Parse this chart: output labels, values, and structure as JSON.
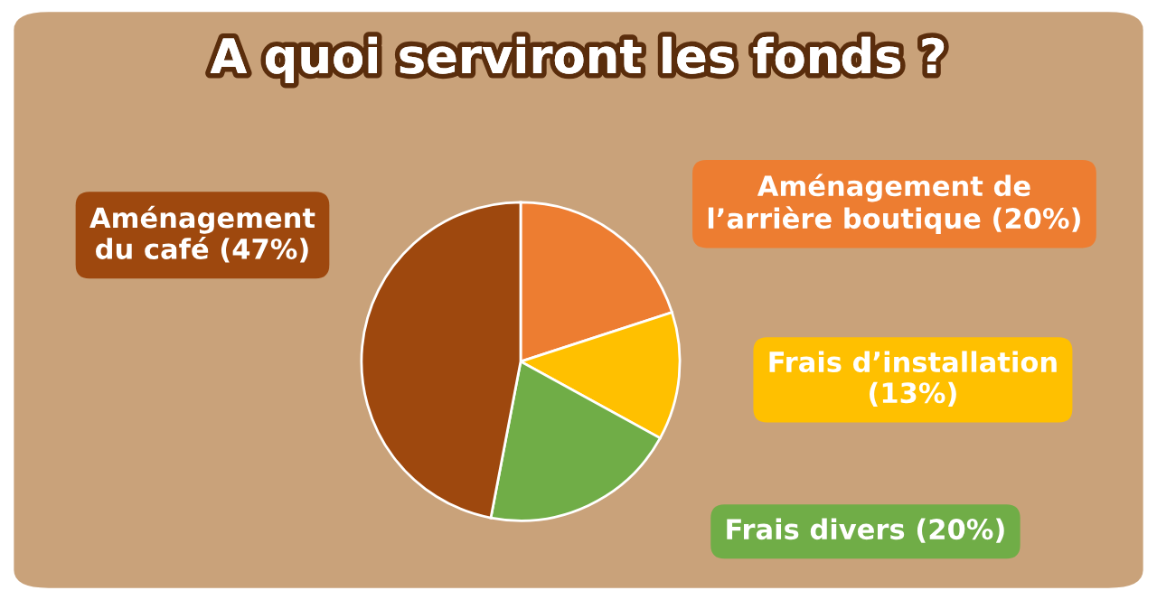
{
  "chart_data": {
    "type": "pie",
    "title": "A quoi serviront les fonds ?",
    "categories": [
      "Aménagement de\nl’arrière boutique (20%)",
      "Frais d’installation\n(13%)",
      "Frais divers (20%)",
      "Aménagement\ndu café (47%)"
    ],
    "values": [
      20,
      13,
      20,
      47
    ],
    "colors": [
      "#ed7d31",
      "#ffc000",
      "#70ad47",
      "#9e480e"
    ]
  }
}
